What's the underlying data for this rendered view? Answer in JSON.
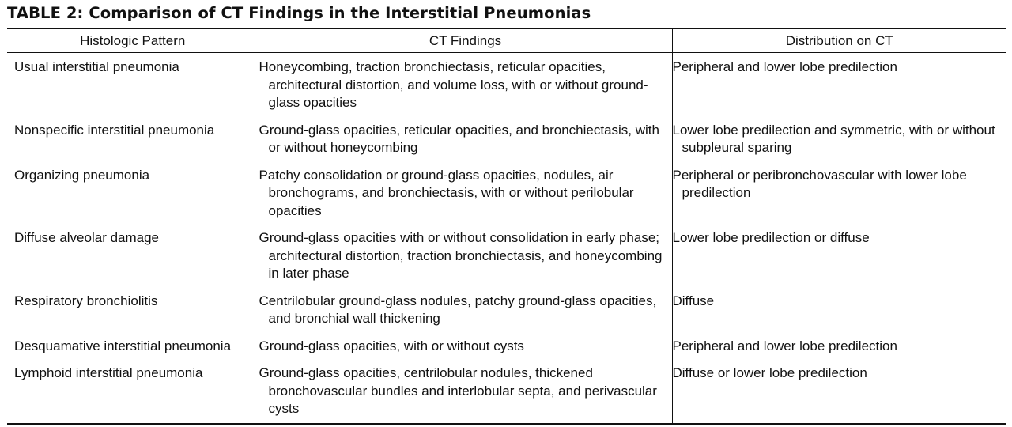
{
  "title": "TABLE 2: Comparison of CT Findings in the Interstitial Pneumonias",
  "headers": [
    "Histologic Pattern",
    "CT Findings",
    "Distribution on CT"
  ],
  "rows": [
    {
      "pattern": "Usual interstitial pneumonia",
      "findings": "Honeycombing, traction bronchiectasis, reticular opacities, architectural distortion, and volume loss, with or without ground-glass opacities",
      "distribution": "Peripheral and lower lobe predilection"
    },
    {
      "pattern": "Nonspecific interstitial pneumonia",
      "findings": "Ground-glass opacities, reticular opacities, and bronchiectasis, with or without honeycombing",
      "distribution": "Lower lobe predilection and symmetric, with or without subpleural sparing"
    },
    {
      "pattern": "Organizing pneumonia",
      "findings": "Patchy consolidation or ground-glass opacities, nodules, air bronchograms, and bronchiectasis, with or without perilobular opacities",
      "distribution": "Peripheral or peribronchovascular with lower lobe predilection"
    },
    {
      "pattern": "Diffuse alveolar damage",
      "findings": "Ground-glass opacities with or without consolidation in early phase; architectural distortion, traction bronchiectasis, and honeycombing in later phase",
      "distribution": "Lower lobe predilection or diffuse"
    },
    {
      "pattern": "Respiratory bronchiolitis",
      "findings": "Centrilobular ground-glass nodules, patchy ground-glass opacities, and bronchial wall thickening",
      "distribution": "Diffuse"
    },
    {
      "pattern": "Desquamative interstitial pneumonia",
      "findings": "Ground-glass opacities, with or without cysts",
      "distribution": "Peripheral and lower lobe predilection"
    },
    {
      "pattern": "Lymphoid interstitial pneumonia",
      "findings": "Ground-glass opacities, centrilobular nodules, thickened bronchovascular bundles and interlobular septa, and perivascular cysts",
      "distribution": "Diffuse or lower lobe predilection"
    }
  ]
}
